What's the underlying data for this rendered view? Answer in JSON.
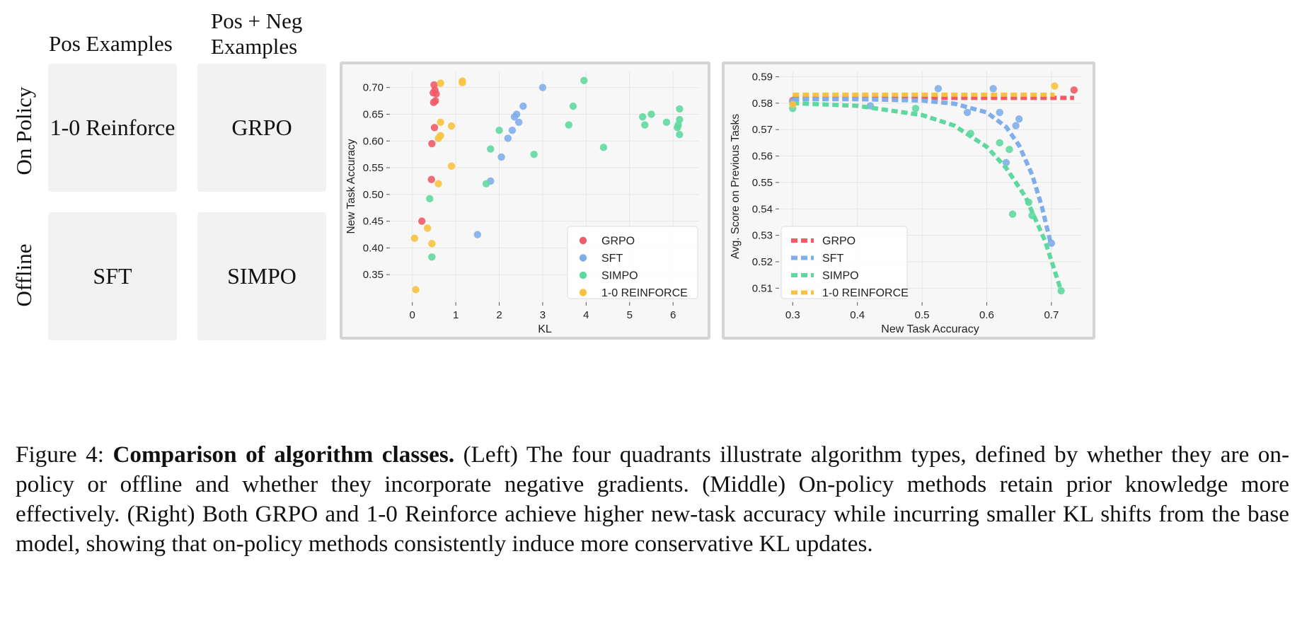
{
  "quadrants": {
    "col_headers": [
      "Pos Examples",
      "Pos + Neg\nExamples"
    ],
    "row_labels": [
      "On Policy",
      "Offline"
    ],
    "cells": [
      "1-0 Reinforce",
      "GRPO",
      "SFT",
      "SIMPO"
    ]
  },
  "caption": {
    "label": "Figure 4:",
    "title": "Comparison of algorithm classes.",
    "body": "(Left) The four quadrants illustrate algorithm types, defined by whether they are on-policy or offline and whether they incorporate negative gradients. (Middle) On-policy methods retain prior knowledge more effectively. (Right) Both GRPO and 1-0 Reinforce achieve higher new-task accuracy while incurring smaller KL shifts from the base model, showing that on-policy methods consistently induce more conservative KL updates."
  },
  "colors": {
    "GRPO": "#ef5b67",
    "SFT": "#7faeea",
    "SIMPO": "#5fd8a0",
    "1-0 REINFORCE": "#f7c23e"
  },
  "chart_data": [
    {
      "type": "scatter",
      "xlabel": "KL",
      "ylabel": "New Task Accuracy",
      "xlim": [
        -0.5,
        6.6
      ],
      "ylim": [
        0.3,
        0.73
      ],
      "xticks": [
        "0",
        "1",
        "2",
        "3",
        "4",
        "5",
        "6"
      ],
      "yticks": [
        "0.35",
        "0.40",
        "0.45",
        "0.50",
        "0.55",
        "0.60",
        "0.65",
        "0.70"
      ],
      "grid": true,
      "legend_position": "bottom-right",
      "legend": [
        "GRPO",
        "SFT",
        "SIMPO",
        "1-0 REINFORCE"
      ],
      "series": [
        {
          "name": "GRPO",
          "points": [
            [
              0.5,
              0.705
            ],
            [
              0.52,
              0.695
            ],
            [
              0.48,
              0.69
            ],
            [
              0.55,
              0.688
            ],
            [
              0.53,
              0.675
            ],
            [
              0.49,
              0.672
            ],
            [
              0.51,
              0.625
            ],
            [
              0.45,
              0.595
            ],
            [
              0.44,
              0.528
            ],
            [
              0.22,
              0.45
            ]
          ]
        },
        {
          "name": "SFT",
          "points": [
            [
              2.55,
              0.665
            ],
            [
              3.0,
              0.7
            ],
            [
              2.4,
              0.65
            ],
            [
              2.35,
              0.645
            ],
            [
              2.45,
              0.635
            ],
            [
              2.3,
              0.62
            ],
            [
              2.2,
              0.605
            ],
            [
              2.05,
              0.57
            ],
            [
              1.8,
              0.525
            ],
            [
              1.5,
              0.425
            ]
          ]
        },
        {
          "name": "SIMPO",
          "points": [
            [
              3.95,
              0.713
            ],
            [
              3.7,
              0.665
            ],
            [
              3.6,
              0.63
            ],
            [
              2.8,
              0.575
            ],
            [
              2.0,
              0.62
            ],
            [
              1.8,
              0.585
            ],
            [
              1.7,
              0.52
            ],
            [
              4.4,
              0.588
            ],
            [
              5.3,
              0.645
            ],
            [
              5.5,
              0.65
            ],
            [
              5.35,
              0.63
            ],
            [
              5.85,
              0.635
            ],
            [
              6.15,
              0.66
            ],
            [
              6.15,
              0.64
            ],
            [
              6.12,
              0.63
            ],
            [
              6.1,
              0.625
            ],
            [
              6.15,
              0.612
            ],
            [
              0.4,
              0.492
            ],
            [
              0.45,
              0.383
            ]
          ]
        },
        {
          "name": "1-0 REINFORCE",
          "points": [
            [
              1.15,
              0.712
            ],
            [
              1.15,
              0.709
            ],
            [
              0.65,
              0.708
            ],
            [
              0.65,
              0.635
            ],
            [
              0.9,
              0.628
            ],
            [
              0.65,
              0.61
            ],
            [
              0.6,
              0.605
            ],
            [
              0.9,
              0.553
            ],
            [
              0.6,
              0.52
            ],
            [
              0.35,
              0.437
            ],
            [
              0.45,
              0.408
            ],
            [
              0.05,
              0.418
            ],
            [
              0.08,
              0.322
            ]
          ]
        }
      ]
    },
    {
      "type": "line",
      "xlabel": "New Task Accuracy",
      "ylabel": "Avg. Score on Previous Tasks",
      "xlim": [
        0.28,
        0.745
      ],
      "ylim": [
        0.505,
        0.592
      ],
      "xticks": [
        "0.3",
        "0.4",
        "0.5",
        "0.6",
        "0.7"
      ],
      "yticks": [
        "0.51",
        "0.52",
        "0.53",
        "0.54",
        "0.55",
        "0.56",
        "0.57",
        "0.58",
        "0.59"
      ],
      "grid": true,
      "legend_position": "bottom-left",
      "legend": [
        "GRPO",
        "SFT",
        "SIMPO",
        "1-0 REINFORCE"
      ],
      "series": [
        {
          "name": "GRPO",
          "fit": [
            [
              0.3,
              0.582
            ],
            [
              0.735,
              0.582
            ]
          ],
          "points": [
            [
              0.735,
              0.585
            ],
            [
              0.3,
              0.581
            ]
          ]
        },
        {
          "name": "SFT",
          "fit": [
            [
              0.3,
              0.5815
            ],
            [
              0.4,
              0.5815
            ],
            [
              0.5,
              0.581
            ],
            [
              0.55,
              0.5798
            ],
            [
              0.6,
              0.5765
            ],
            [
              0.63,
              0.571
            ],
            [
              0.65,
              0.564
            ],
            [
              0.67,
              0.553
            ],
            [
              0.685,
              0.541
            ],
            [
              0.7,
              0.526
            ]
          ],
          "points": [
            [
              0.525,
              0.5855
            ],
            [
              0.61,
              0.5855
            ],
            [
              0.42,
              0.579
            ],
            [
              0.57,
              0.5765
            ],
            [
              0.62,
              0.5765
            ],
            [
              0.65,
              0.574
            ],
            [
              0.645,
              0.5715
            ],
            [
              0.63,
              0.5575
            ],
            [
              0.7,
              0.527
            ],
            [
              0.3,
              0.5805
            ]
          ]
        },
        {
          "name": "SIMPO",
          "fit": [
            [
              0.3,
              0.58
            ],
            [
              0.4,
              0.579
            ],
            [
              0.5,
              0.5755
            ],
            [
              0.55,
              0.5715
            ],
            [
              0.6,
              0.5635
            ],
            [
              0.63,
              0.5555
            ],
            [
              0.66,
              0.5445
            ],
            [
              0.69,
              0.528
            ],
            [
              0.715,
              0.509
            ]
          ],
          "points": [
            [
              0.49,
              0.578
            ],
            [
              0.3,
              0.578
            ],
            [
              0.575,
              0.5685
            ],
            [
              0.62,
              0.565
            ],
            [
              0.635,
              0.5625
            ],
            [
              0.665,
              0.5425
            ],
            [
              0.67,
              0.5375
            ],
            [
              0.64,
              0.538
            ],
            [
              0.715,
              0.509
            ]
          ]
        },
        {
          "name": "1-0 REINFORCE",
          "fit": [
            [
              0.3,
              0.5832
            ],
            [
              0.705,
              0.5832
            ]
          ],
          "points": [
            [
              0.705,
              0.5865
            ],
            [
              0.3,
              0.5795
            ]
          ]
        }
      ]
    }
  ]
}
